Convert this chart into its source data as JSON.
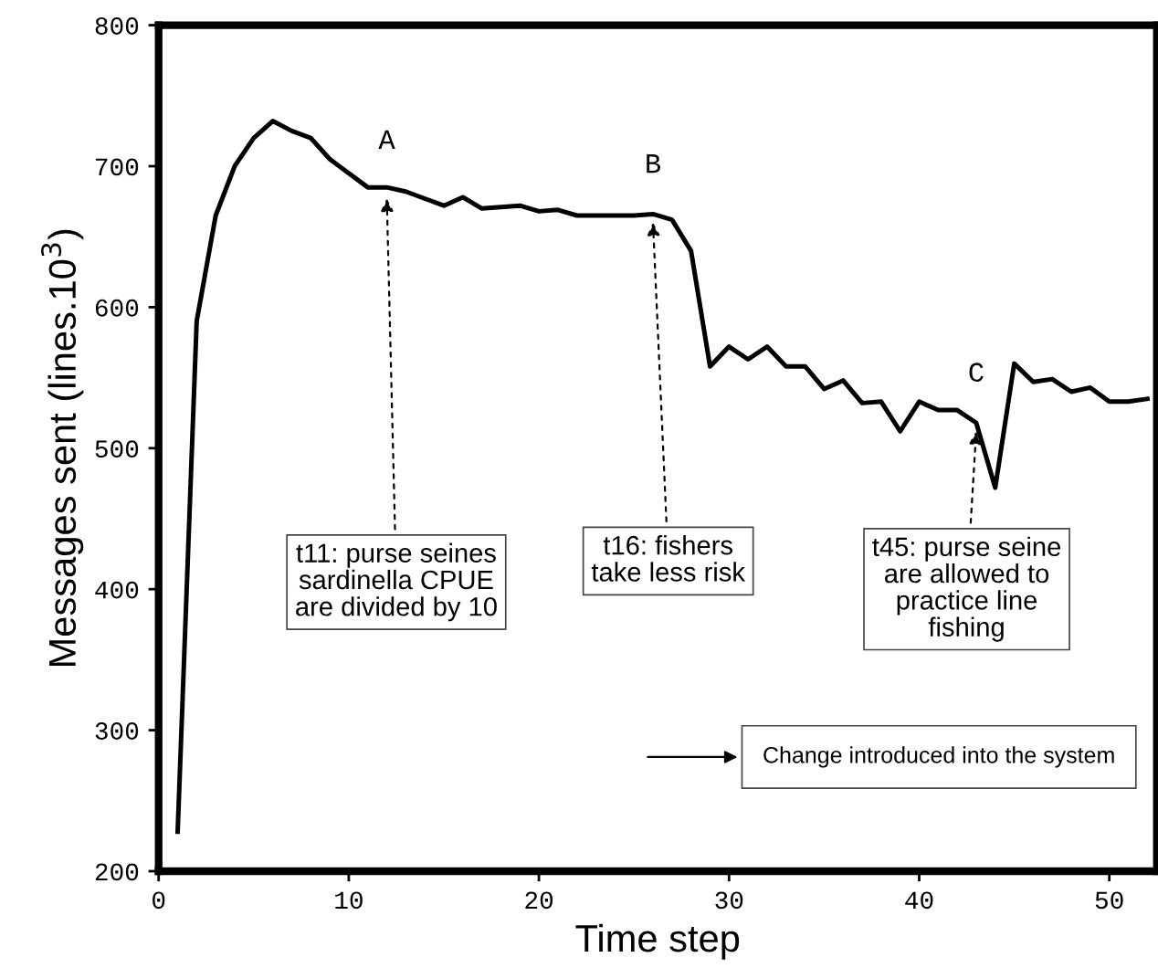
{
  "chart_data": {
    "type": "line",
    "xlabel": "Time step",
    "ylabel": "Messages sent (lines.10$^{3}$)",
    "x": [
      1,
      2,
      3,
      4,
      5,
      6,
      7,
      8,
      9,
      10,
      11,
      12,
      13,
      14,
      15,
      16,
      17,
      18,
      19,
      20,
      21,
      22,
      23,
      24,
      25,
      26,
      27,
      28,
      29,
      30,
      31,
      32,
      33,
      34,
      35,
      36,
      37,
      38,
      39,
      40,
      41,
      42,
      43,
      44,
      45,
      46,
      47,
      48,
      49,
      50,
      51,
      52
    ],
    "series": [
      {
        "color": "#000000",
        "values": [
          228,
          590,
          665,
          700,
          720,
          732,
          725,
          720,
          705,
          695,
          685,
          685,
          682,
          677,
          672,
          678,
          670,
          671,
          672,
          668,
          669,
          665,
          665,
          665,
          665,
          666,
          662,
          640,
          558,
          572,
          563,
          572,
          558,
          558,
          542,
          548,
          532,
          533,
          512,
          533,
          527,
          527,
          518,
          472,
          560,
          547,
          549,
          540,
          543,
          533,
          533,
          535
        ]
      }
    ],
    "xlim": [
      0,
      52.5
    ],
    "ylim": [
      200,
      800
    ],
    "xticks": [
      0,
      10,
      20,
      30,
      40,
      50
    ],
    "yticks": [
      200,
      300,
      400,
      500,
      600,
      700,
      800
    ],
    "grid": false,
    "legend": false,
    "marker": "none",
    "line_style": "solid",
    "annotations": [
      {
        "text": "A",
        "x": 12,
        "y": 683
      },
      {
        "text": "B",
        "x": 26,
        "y": 666
      },
      {
        "text": "C",
        "x": 43,
        "y": 518
      },
      {
        "text": "t11: purse seines\nsardinella CPUE\nare divided by 10",
        "x": 12,
        "y": 683
      },
      {
        "text": "t16: fishers\ntake less risk",
        "x": 26,
        "y": 666
      },
      {
        "text": "t45: purse seine\nare allowed to\npractice line\nfishing",
        "x": 43,
        "y": 518
      },
      "Change introduced into the system"
    ]
  }
}
